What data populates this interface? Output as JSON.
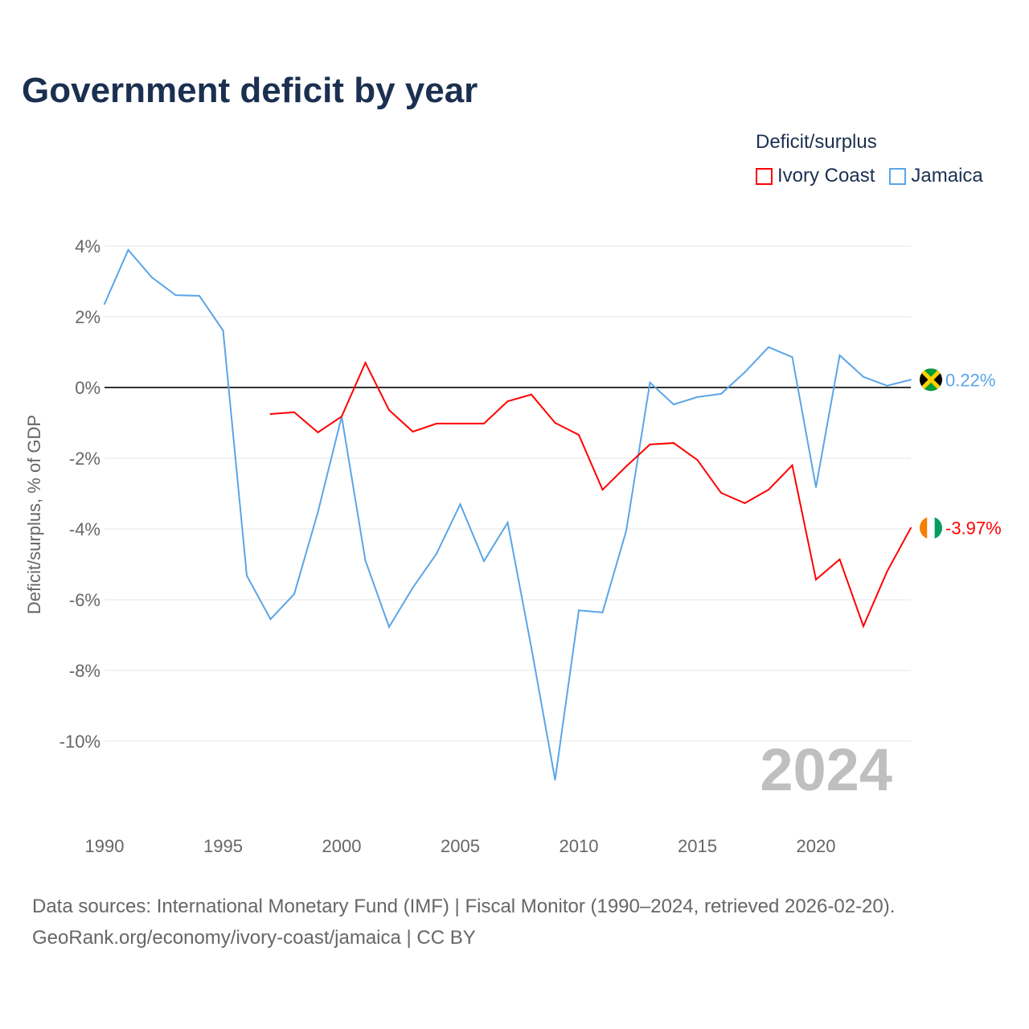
{
  "title": "Government deficit by year",
  "legend": {
    "title": "Deficit/surplus",
    "items": [
      {
        "label": "Ivory Coast",
        "color": "#ff0000"
      },
      {
        "label": "Jamaica",
        "color": "#5aa5e8"
      }
    ]
  },
  "year_watermark": "2024",
  "footer": {
    "line1": "Data sources: International Monetary Fund (IMF) | Fiscal Monitor (1990–2024, retrieved 2026-02-20).",
    "line2": "GeoRank.org/economy/ivory-coast/jamaica | CC BY"
  },
  "chart_data": {
    "type": "line",
    "title": "Government deficit by year",
    "xlabel": "",
    "ylabel": "Deficit/surplus, % of GDP",
    "xlim": [
      1990,
      2024
    ],
    "ylim": [
      -12,
      4.5
    ],
    "x_ticks": [
      1990,
      1995,
      2000,
      2005,
      2010,
      2015,
      2020
    ],
    "x_tick_labels": [
      "1990",
      "1995",
      "2000",
      "2005",
      "2010",
      "2015",
      "2020"
    ],
    "y_ticks": [
      4,
      2,
      0,
      -2,
      -4,
      -6,
      -8,
      -10
    ],
    "y_tick_labels": [
      "4%",
      "2%",
      "0%",
      "-2%",
      "-4%",
      "-6%",
      "-8%",
      "-10%"
    ],
    "grid": true,
    "legend_placement": "top-right",
    "series": [
      {
        "name": "Ivory Coast",
        "color": "#ff0000",
        "end_label": "-3.97%",
        "x": [
          1997,
          1998,
          1999,
          2000,
          2001,
          2002,
          2003,
          2004,
          2005,
          2006,
          2007,
          2008,
          2009,
          2010,
          2011,
          2012,
          2013,
          2014,
          2015,
          2016,
          2017,
          2018,
          2019,
          2020,
          2021,
          2022,
          2023,
          2024
        ],
        "values": [
          -0.75,
          -0.7,
          -1.27,
          -0.82,
          0.7,
          -0.64,
          -1.25,
          -1.02,
          -1.02,
          -1.02,
          -0.39,
          -0.2,
          -1.0,
          -1.34,
          -2.89,
          -2.23,
          -1.61,
          -1.57,
          -2.05,
          -2.98,
          -3.27,
          -2.89,
          -2.2,
          -5.43,
          -4.86,
          -6.75,
          -5.2,
          -3.97
        ]
      },
      {
        "name": "Jamaica",
        "color": "#5aa5e8",
        "end_label": "0.22%",
        "x": [
          1990,
          1991,
          1992,
          1993,
          1994,
          1995,
          1996,
          1997,
          1998,
          1999,
          2000,
          2001,
          2002,
          2003,
          2004,
          2005,
          2006,
          2007,
          2008,
          2009,
          2010,
          2011,
          2012,
          2013,
          2014,
          2015,
          2016,
          2017,
          2018,
          2019,
          2020,
          2021,
          2022,
          2023,
          2024
        ],
        "values": [
          2.36,
          3.89,
          3.11,
          2.61,
          2.59,
          1.61,
          -5.32,
          -6.55,
          -5.84,
          -3.52,
          -0.82,
          -4.89,
          -6.77,
          -5.66,
          -4.7,
          -3.3,
          -4.91,
          -3.82,
          -7.36,
          -11.09,
          -6.3,
          -6.36,
          -4.05,
          0.14,
          -0.48,
          -0.27,
          -0.18,
          0.43,
          1.14,
          0.86,
          -2.82,
          0.91,
          0.3,
          0.05,
          0.22
        ]
      }
    ]
  }
}
